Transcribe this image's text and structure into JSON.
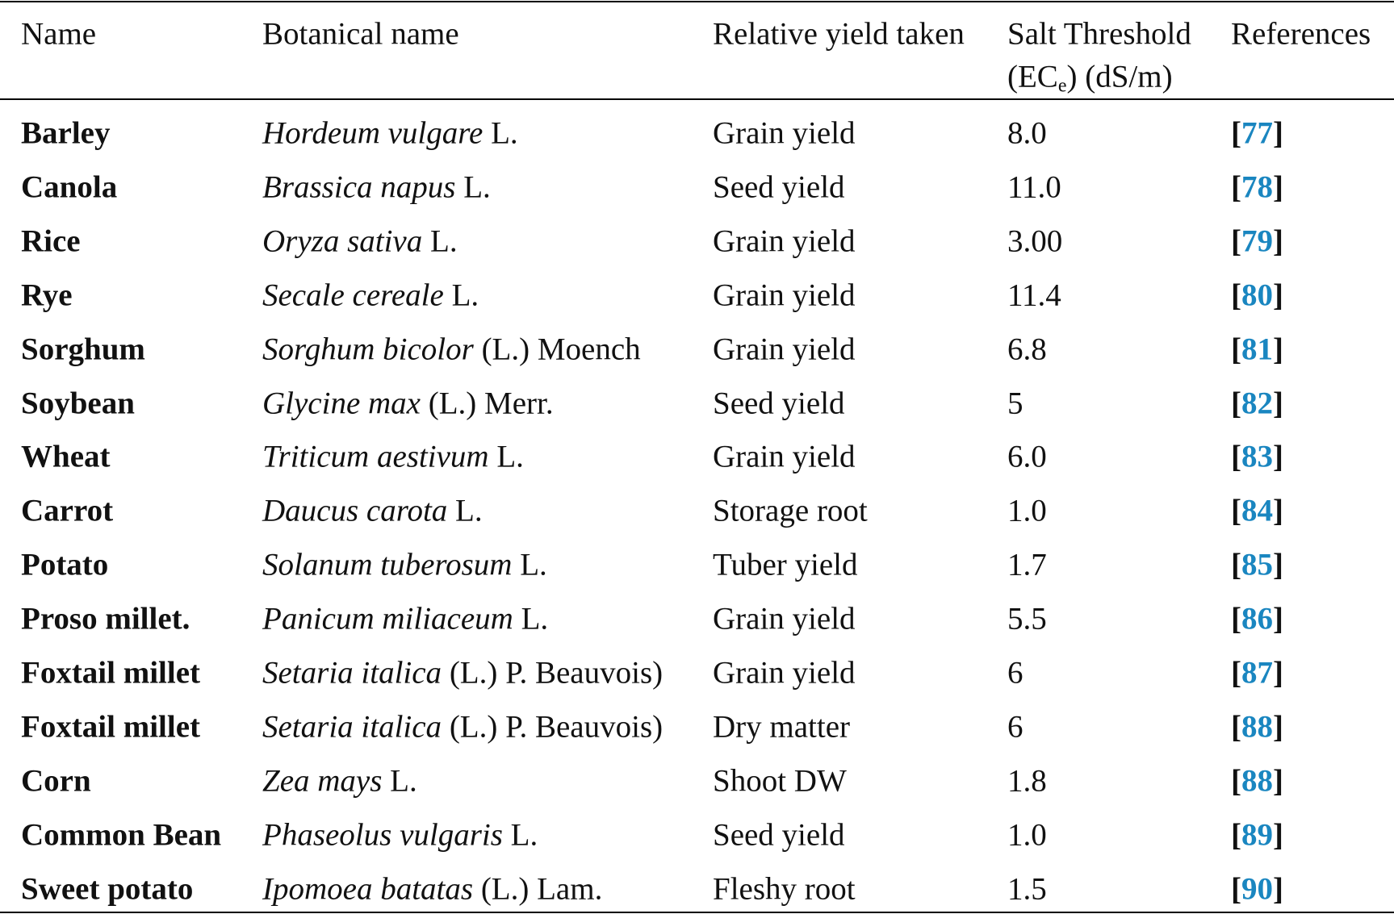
{
  "table": {
    "header": {
      "name": "Name",
      "botanical": "Botanical name",
      "yield": "Relative yield taken",
      "threshold": {
        "line1": "Salt Threshold",
        "pre": "(EC",
        "sub": "e",
        "post": ") (dS/m)"
      },
      "references": "References"
    },
    "rows": [
      {
        "name": "Barley",
        "italic": "Hordeum vulgare",
        "author": " L.",
        "yield": "Grain yield",
        "threshold": "8.0",
        "ref": {
          "open": "[",
          "number": "77",
          "close": "]"
        }
      },
      {
        "name": "Canola",
        "italic": "Brassica napus",
        "author": " L.",
        "yield": "Seed yield",
        "threshold": "11.0",
        "ref": {
          "open": "[",
          "number": "78",
          "close": "]"
        }
      },
      {
        "name": "Rice",
        "italic": "Oryza sativa",
        "author": " L.",
        "yield": "Grain yield",
        "threshold": "3.00",
        "ref": {
          "open": "[",
          "number": "79",
          "close": "]"
        }
      },
      {
        "name": "Rye",
        "italic": "Secale cereale",
        "author": " L.",
        "yield": "Grain yield",
        "threshold": "11.4",
        "ref": {
          "open": "[",
          "number": "80",
          "close": "]"
        }
      },
      {
        "name": "Sorghum",
        "italic": "Sorghum bicolor",
        "author": " (L.) Moench",
        "yield": "Grain yield",
        "threshold": "6.8",
        "ref": {
          "open": "[",
          "number": "81",
          "close": "]"
        }
      },
      {
        "name": "Soybean",
        "italic": "Glycine max",
        "author": " (L.) Merr.",
        "yield": "Seed yield",
        "threshold": "5",
        "ref": {
          "open": "[",
          "number": "82",
          "close": "]"
        }
      },
      {
        "name": "Wheat",
        "italic": "Triticum aestivum",
        "author": " L.",
        "yield": "Grain yield",
        "threshold": "6.0",
        "ref": {
          "open": "[",
          "number": "83",
          "close": "]"
        }
      },
      {
        "name": "Carrot",
        "italic": "Daucus carota",
        "author": " L.",
        "yield": "Storage root",
        "threshold": "1.0",
        "ref": {
          "open": "[",
          "number": "84",
          "close": "]"
        }
      },
      {
        "name": "Potato",
        "italic": "Solanum tuberosum",
        "author": " L.",
        "yield": "Tuber yield",
        "threshold": "1.7",
        "ref": {
          "open": "[",
          "number": "85",
          "close": "]"
        }
      },
      {
        "name": "Proso millet.",
        "italic": "Panicum miliaceum",
        "author": " L.",
        "yield": "Grain yield",
        "threshold": "5.5",
        "ref": {
          "open": "[",
          "number": "86",
          "close": "]"
        }
      },
      {
        "name": "Foxtail millet",
        "italic": "Setaria italica",
        "author": " (L.) P. Beauvois)",
        "yield": "Grain yield",
        "threshold": "6",
        "ref": {
          "open": "[",
          "number": "87",
          "close": "]"
        }
      },
      {
        "name": "Foxtail millet",
        "italic": "Setaria italica",
        "author": " (L.) P. Beauvois)",
        "yield": "Dry matter",
        "threshold": "6",
        "ref": {
          "open": "[",
          "number": "88",
          "close": "]"
        }
      },
      {
        "name": "Corn",
        "italic": "Zea mays",
        "author": " L.",
        "yield": "Shoot DW",
        "threshold": "1.8",
        "ref": {
          "open": "[",
          "number": "88",
          "close": "]"
        }
      },
      {
        "name": "Common Bean",
        "italic": "Phaseolus vulgaris",
        "author": " L.",
        "yield": "Seed yield",
        "threshold": "1.0",
        "ref": {
          "open": "[",
          "number": "89",
          "close": "]"
        }
      },
      {
        "name": "Sweet potato",
        "italic": "Ipomoea batatas",
        "author": " (L.) Lam.",
        "yield": "Fleshy root",
        "threshold": "1.5",
        "ref": {
          "open": "[",
          "number": "90",
          "close": "]"
        }
      }
    ]
  }
}
